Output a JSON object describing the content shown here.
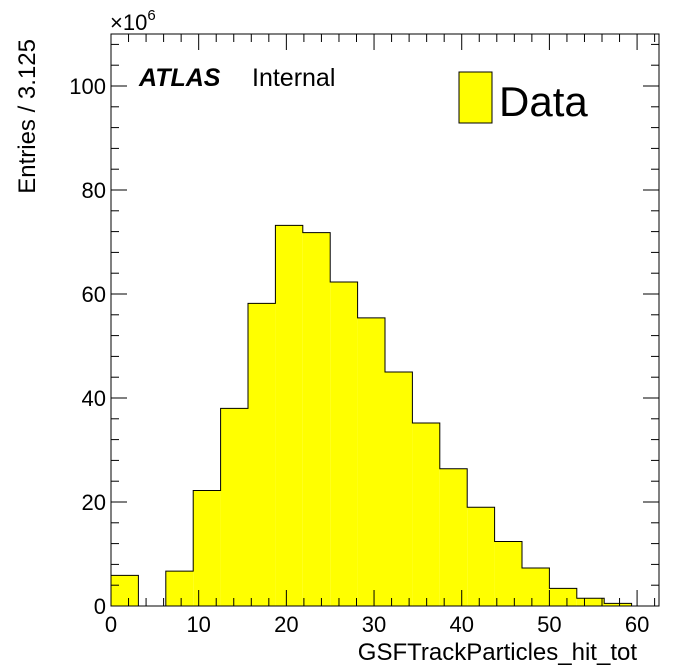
{
  "chart_data": {
    "type": "bar",
    "style": "histogram",
    "title": "",
    "xlabel": "GSFTrackParticles_hit_tot",
    "ylabel": "Entries / 3.125",
    "y_multiplier_label": "×10",
    "y_multiplier_exp": "6",
    "xlim": [
      0,
      62.5
    ],
    "ylim": [
      0,
      110
    ],
    "x_ticks": [
      0,
      10,
      20,
      30,
      40,
      50,
      60
    ],
    "y_ticks": [
      0,
      20,
      40,
      60,
      80,
      100
    ],
    "x_tick_labels": [
      "0",
      "10",
      "20",
      "30",
      "40",
      "50",
      "60"
    ],
    "y_tick_labels": [
      "0",
      "20",
      "40",
      "60",
      "80",
      "100"
    ],
    "bin_width": 3.125,
    "bin_edges": [
      0,
      3.125,
      6.25,
      9.375,
      12.5,
      15.625,
      18.75,
      21.875,
      25,
      28.125,
      31.25,
      34.375,
      37.5,
      40.625,
      43.75,
      46.875,
      50,
      53.125,
      56.25,
      59.375,
      62.5
    ],
    "values": [
      5.9,
      0,
      6.7,
      22.2,
      38.0,
      58.2,
      73.2,
      71.8,
      62.3,
      55.4,
      45.0,
      35.2,
      26.4,
      19.0,
      12.4,
      7.3,
      3.4,
      1.5,
      0.5,
      0.0
    ],
    "series": [
      {
        "name": "Data",
        "color": "#ffff00"
      }
    ],
    "legend": {
      "entries": [
        "Data"
      ],
      "position": "top-right"
    },
    "annotation": {
      "atlas": "ATLAS",
      "status": "Internal"
    },
    "grid": false
  }
}
